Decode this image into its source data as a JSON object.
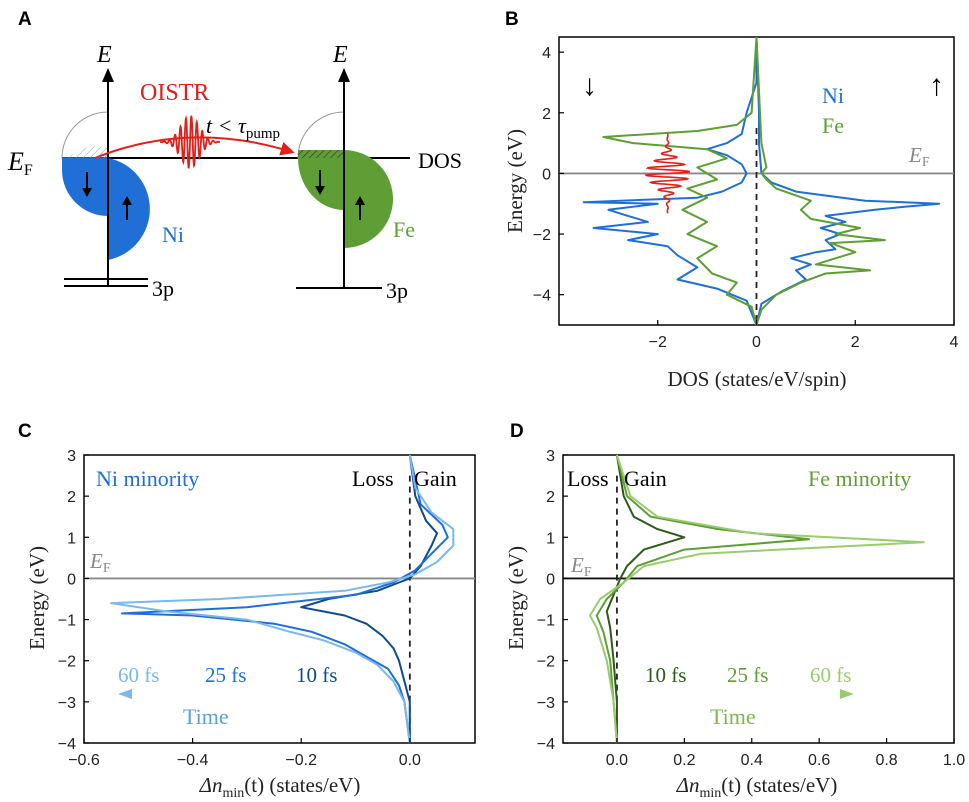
{
  "panels": {
    "A": {
      "letter": "A",
      "energy_axis": "E",
      "pump_label": "OISTR",
      "timing_label": "t < τ",
      "timing_sub": "pump",
      "fermi_label": "E",
      "fermi_sub": "F",
      "dos_label": "DOS",
      "ni_label": "Ni",
      "fe_label": "Fe",
      "core_ni": "3p",
      "core_fe": "3p",
      "colors": {
        "ni": "#1f6fd6",
        "fe": "#5f9e35",
        "pump": "#e0201b"
      }
    },
    "B": {
      "letter": "B",
      "legend_ni": "Ni",
      "legend_fe": "Fe",
      "fermi_label": "E",
      "fermi_sub": "F",
      "spin_down": "↓",
      "spin_up": "↑"
    },
    "C": {
      "letter": "C",
      "title": "Ni minority",
      "loss": "Loss",
      "gain": "Gain",
      "fermi_label": "E",
      "fermi_sub": "F",
      "time_label": "Time"
    },
    "D": {
      "letter": "D",
      "title": "Fe minority",
      "loss": "Loss",
      "gain": "Gain",
      "fermi_label": "E",
      "fermi_sub": "F",
      "time_label": "Time"
    }
  },
  "chart_data": [
    {
      "id": "B",
      "type": "line",
      "xlabel": "DOS (states/eV/spin)",
      "ylabel": "Energy (eV)",
      "xlim": [
        -4,
        4
      ],
      "ylim": [
        -5,
        4.5
      ],
      "xticks": [
        -2,
        0,
        2,
        4
      ],
      "yticks": [
        -4,
        -2,
        0,
        2,
        4
      ],
      "series": [
        {
          "name": "Ni",
          "color": "#1f6fd6",
          "points": [
            [
              0,
              -5
            ],
            [
              -0.2,
              -4.2
            ],
            [
              -0.8,
              -3.8
            ],
            [
              -1.6,
              -3.5
            ],
            [
              -1.2,
              -3.1
            ],
            [
              -1.6,
              -2.7
            ],
            [
              -1.8,
              -2.4
            ],
            [
              -2.6,
              -2.2
            ],
            [
              -2.0,
              -2.0
            ],
            [
              -3.3,
              -1.8
            ],
            [
              -2.2,
              -1.6
            ],
            [
              -2.6,
              -1.4
            ],
            [
              -3.0,
              -1.2
            ],
            [
              -2.0,
              -1.0
            ],
            [
              -3.5,
              -0.95
            ],
            [
              -1.2,
              -0.8
            ],
            [
              -0.7,
              -0.6
            ],
            [
              -0.3,
              -0.3
            ],
            [
              -0.2,
              0
            ],
            [
              -0.3,
              0.3
            ],
            [
              -0.6,
              0.6
            ],
            [
              -1.0,
              0.8
            ],
            [
              -0.6,
              1.0
            ],
            [
              -0.3,
              1.3
            ],
            [
              -0.2,
              2
            ],
            [
              0,
              3
            ],
            [
              0,
              4.5
            ]
          ]
        },
        {
          "name": "Ni",
          "color": "#1f6fd6",
          "points": [
            [
              0,
              -5
            ],
            [
              0.1,
              -4.3
            ],
            [
              0.5,
              -3.9
            ],
            [
              1.0,
              -3.5
            ],
            [
              0.8,
              -3.2
            ],
            [
              1.1,
              -3.0
            ],
            [
              0.7,
              -2.8
            ],
            [
              1.2,
              -2.6
            ],
            [
              1.6,
              -2.5
            ],
            [
              1.4,
              -2.2
            ],
            [
              1.7,
              -2.0
            ],
            [
              1.3,
              -1.8
            ],
            [
              1.8,
              -1.6
            ],
            [
              1.4,
              -1.4
            ],
            [
              2.4,
              -1.2
            ],
            [
              3.0,
              -1.1
            ],
            [
              3.7,
              -1.0
            ],
            [
              2.2,
              -0.9
            ],
            [
              0.8,
              -0.6
            ],
            [
              0.3,
              -0.3
            ],
            [
              0.1,
              0
            ],
            [
              0.05,
              1
            ],
            [
              0.05,
              2
            ],
            [
              0,
              4.5
            ]
          ]
        },
        {
          "name": "Fe",
          "color": "#5f9e35",
          "points": [
            [
              0,
              -5
            ],
            [
              -0.1,
              -4.4
            ],
            [
              -0.6,
              -4.0
            ],
            [
              -0.4,
              -3.6
            ],
            [
              -0.9,
              -3.3
            ],
            [
              -1.2,
              -2.8
            ],
            [
              -0.8,
              -2.4
            ],
            [
              -1.4,
              -2.0
            ],
            [
              -1.0,
              -1.6
            ],
            [
              -1.5,
              -1.2
            ],
            [
              -1.0,
              -0.8
            ],
            [
              -1.4,
              -0.5
            ],
            [
              -0.8,
              -0.2
            ],
            [
              -1.2,
              0.2
            ],
            [
              -0.6,
              0.5
            ],
            [
              -1.0,
              0.8
            ],
            [
              -2.5,
              1.0
            ],
            [
              -3.1,
              1.2
            ],
            [
              -1.2,
              1.4
            ],
            [
              -0.4,
              1.6
            ],
            [
              -0.1,
              2.0
            ],
            [
              0,
              4.5
            ]
          ]
        },
        {
          "name": "Fe",
          "color": "#5f9e35",
          "points": [
            [
              0,
              -5
            ],
            [
              0.1,
              -4.5
            ],
            [
              0.4,
              -4.0
            ],
            [
              0.9,
              -3.6
            ],
            [
              1.4,
              -3.3
            ],
            [
              2.3,
              -3.2
            ],
            [
              1.2,
              -3.0
            ],
            [
              2.0,
              -2.6
            ],
            [
              1.5,
              -2.3
            ],
            [
              2.6,
              -2.2
            ],
            [
              1.6,
              -2.0
            ],
            [
              2.1,
              -1.8
            ],
            [
              1.1,
              -1.5
            ],
            [
              0.9,
              -1.2
            ],
            [
              1.1,
              -0.9
            ],
            [
              0.4,
              -0.5
            ],
            [
              0.2,
              -0.2
            ],
            [
              0.1,
              0
            ],
            [
              0.2,
              0.2
            ],
            [
              0.1,
              1
            ],
            [
              0,
              4.5
            ]
          ]
        }
      ]
    },
    {
      "id": "C",
      "type": "line",
      "xlabel": "Δn",
      "xlabel_sub": "min",
      "xlabel_rest": "(t) (states/eV)",
      "ylabel": "Energy (eV)",
      "xlim": [
        -0.6,
        0.12
      ],
      "ylim": [
        -4,
        3
      ],
      "xticks": [
        -0.6,
        -0.4,
        -0.2,
        0.0
      ],
      "yticks": [
        -4,
        -3,
        -2,
        -1,
        0,
        1,
        2,
        3
      ],
      "series": [
        {
          "name": "10 fs",
          "color": "#0d4a8f",
          "points": [
            [
              0,
              -4
            ],
            [
              0,
              -3
            ],
            [
              -0.01,
              -2.5
            ],
            [
              -0.02,
              -2
            ],
            [
              -0.03,
              -1.7
            ],
            [
              -0.05,
              -1.4
            ],
            [
              -0.08,
              -1.1
            ],
            [
              -0.12,
              -0.9
            ],
            [
              -0.2,
              -0.7
            ],
            [
              -0.15,
              -0.5
            ],
            [
              -0.06,
              -0.3
            ],
            [
              -0.02,
              -0.1
            ],
            [
              0.0,
              0.0
            ],
            [
              0.02,
              0.3
            ],
            [
              0.04,
              0.8
            ],
            [
              0.05,
              1.1
            ],
            [
              0.03,
              1.4
            ],
            [
              0.01,
              2
            ],
            [
              0,
              3
            ]
          ]
        },
        {
          "name": "25 fs",
          "color": "#1f6fd6",
          "points": [
            [
              0,
              -4
            ],
            [
              -0.01,
              -3
            ],
            [
              -0.02,
              -2.6
            ],
            [
              -0.04,
              -2.2
            ],
            [
              -0.08,
              -1.9
            ],
            [
              -0.12,
              -1.6
            ],
            [
              -0.18,
              -1.3
            ],
            [
              -0.25,
              -1.1
            ],
            [
              -0.4,
              -0.9
            ],
            [
              -0.53,
              -0.85
            ],
            [
              -0.3,
              -0.7
            ],
            [
              -0.1,
              -0.4
            ],
            [
              -0.03,
              -0.1
            ],
            [
              0.01,
              0.2
            ],
            [
              0.04,
              0.6
            ],
            [
              0.07,
              1.0
            ],
            [
              0.06,
              1.3
            ],
            [
              0.02,
              1.8
            ],
            [
              0,
              3
            ]
          ]
        },
        {
          "name": "60 fs",
          "color": "#7ab8ee",
          "points": [
            [
              0,
              -4
            ],
            [
              -0.01,
              -3
            ],
            [
              -0.03,
              -2.5
            ],
            [
              -0.06,
              -2.1
            ],
            [
              -0.1,
              -1.8
            ],
            [
              -0.16,
              -1.5
            ],
            [
              -0.22,
              -1.3
            ],
            [
              -0.3,
              -1.0
            ],
            [
              -0.45,
              -0.8
            ],
            [
              -0.55,
              -0.6
            ],
            [
              -0.35,
              -0.5
            ],
            [
              -0.12,
              -0.3
            ],
            [
              -0.04,
              -0.1
            ],
            [
              0.01,
              0.1
            ],
            [
              0.05,
              0.4
            ],
            [
              0.08,
              0.8
            ],
            [
              0.08,
              1.2
            ],
            [
              0.04,
              1.6
            ],
            [
              0.01,
              2.2
            ],
            [
              0,
              3
            ]
          ]
        }
      ]
    },
    {
      "id": "D",
      "type": "line",
      "xlabel": "Δn",
      "xlabel_sub": "min",
      "xlabel_rest": "(t) (states/eV)",
      "ylabel": "Energy (eV)",
      "xlim": [
        -0.16,
        1.0
      ],
      "ylim": [
        -4,
        3
      ],
      "xticks": [
        0.0,
        0.2,
        0.4,
        0.6,
        0.8,
        1.0
      ],
      "yticks": [
        -4,
        -3,
        -2,
        -1,
        0,
        1,
        2,
        3
      ],
      "series": [
        {
          "name": "10 fs",
          "color": "#2c5a1a",
          "points": [
            [
              0,
              -4
            ],
            [
              0,
              -3
            ],
            [
              -0.01,
              -2
            ],
            [
              -0.02,
              -1.2
            ],
            [
              -0.03,
              -0.8
            ],
            [
              -0.01,
              -0.4
            ],
            [
              0.01,
              0
            ],
            [
              0.03,
              0.3
            ],
            [
              0.08,
              0.7
            ],
            [
              0.2,
              1.0
            ],
            [
              0.12,
              1.2
            ],
            [
              0.05,
              1.5
            ],
            [
              0.02,
              2
            ],
            [
              0,
              3
            ]
          ]
        },
        {
          "name": "25 fs",
          "color": "#5f9e35",
          "points": [
            [
              0,
              -4
            ],
            [
              -0.01,
              -3
            ],
            [
              -0.02,
              -2
            ],
            [
              -0.04,
              -1.3
            ],
            [
              -0.06,
              -0.9
            ],
            [
              -0.03,
              -0.5
            ],
            [
              0.02,
              -0.1
            ],
            [
              0.06,
              0.3
            ],
            [
              0.2,
              0.7
            ],
            [
              0.57,
              0.95
            ],
            [
              0.3,
              1.2
            ],
            [
              0.1,
              1.5
            ],
            [
              0.03,
              2
            ],
            [
              0,
              3
            ]
          ]
        },
        {
          "name": "60 fs",
          "color": "#9bcb6f",
          "points": [
            [
              0,
              -4
            ],
            [
              -0.01,
              -3
            ],
            [
              -0.03,
              -2
            ],
            [
              -0.06,
              -1.2
            ],
            [
              -0.08,
              -0.9
            ],
            [
              -0.05,
              -0.5
            ],
            [
              0.02,
              -0.1
            ],
            [
              0.08,
              0.3
            ],
            [
              0.25,
              0.6
            ],
            [
              0.91,
              0.88
            ],
            [
              0.4,
              1.1
            ],
            [
              0.12,
              1.5
            ],
            [
              0.04,
              2
            ],
            [
              0,
              3
            ]
          ]
        }
      ]
    }
  ]
}
